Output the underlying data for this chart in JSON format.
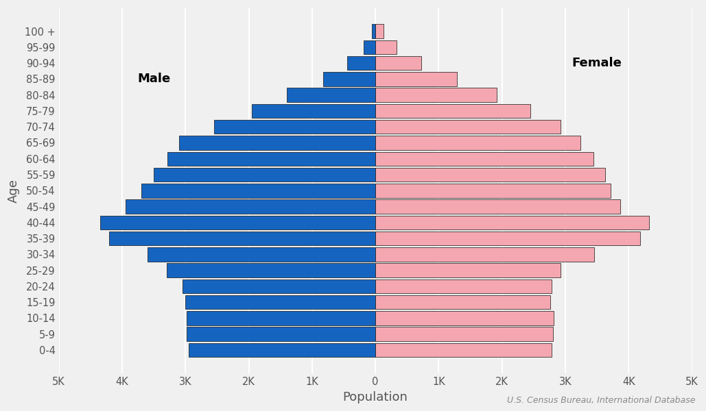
{
  "age_groups": [
    "0-4",
    "5-9",
    "10-14",
    "15-19",
    "20-24",
    "25-29",
    "30-34",
    "35-39",
    "40-44",
    "45-49",
    "50-54",
    "55-59",
    "60-64",
    "65-69",
    "70-74",
    "75-79",
    "80-84",
    "85-89",
    "90-94",
    "95-99",
    "100 +"
  ],
  "male": [
    2950,
    2980,
    2980,
    3000,
    3050,
    3300,
    3600,
    4200,
    4350,
    3950,
    3700,
    3500,
    3280,
    3100,
    2550,
    1950,
    1400,
    820,
    440,
    185,
    52
  ],
  "female": [
    2780,
    2810,
    2820,
    2760,
    2780,
    2920,
    3460,
    4180,
    4320,
    3870,
    3720,
    3630,
    3440,
    3240,
    2920,
    2450,
    1920,
    1290,
    720,
    340,
    130
  ],
  "male_color": "#1565C0",
  "female_color": "#F4A7B0",
  "bar_edgecolor": "#111111",
  "bar_linewidth": 0.5,
  "xlabel": "Population",
  "ylabel": "Age",
  "xlim": 5000,
  "tick_values": [
    -5000,
    -4000,
    -3000,
    -2000,
    -1000,
    0,
    1000,
    2000,
    3000,
    4000,
    5000
  ],
  "tick_labels": [
    "5K",
    "4K",
    "3K",
    "2K",
    "1K",
    "0",
    "1K",
    "2K",
    "3K",
    "4K",
    "5K"
  ],
  "male_label": "Male",
  "female_label": "Female",
  "source_text": "U.S. Census Bureau, International Database",
  "background_color": "#f0f0f0",
  "grid_color": "#ffffff",
  "label_fontsize": 13,
  "tick_fontsize": 10.5,
  "source_fontsize": 9,
  "bar_height": 0.88
}
